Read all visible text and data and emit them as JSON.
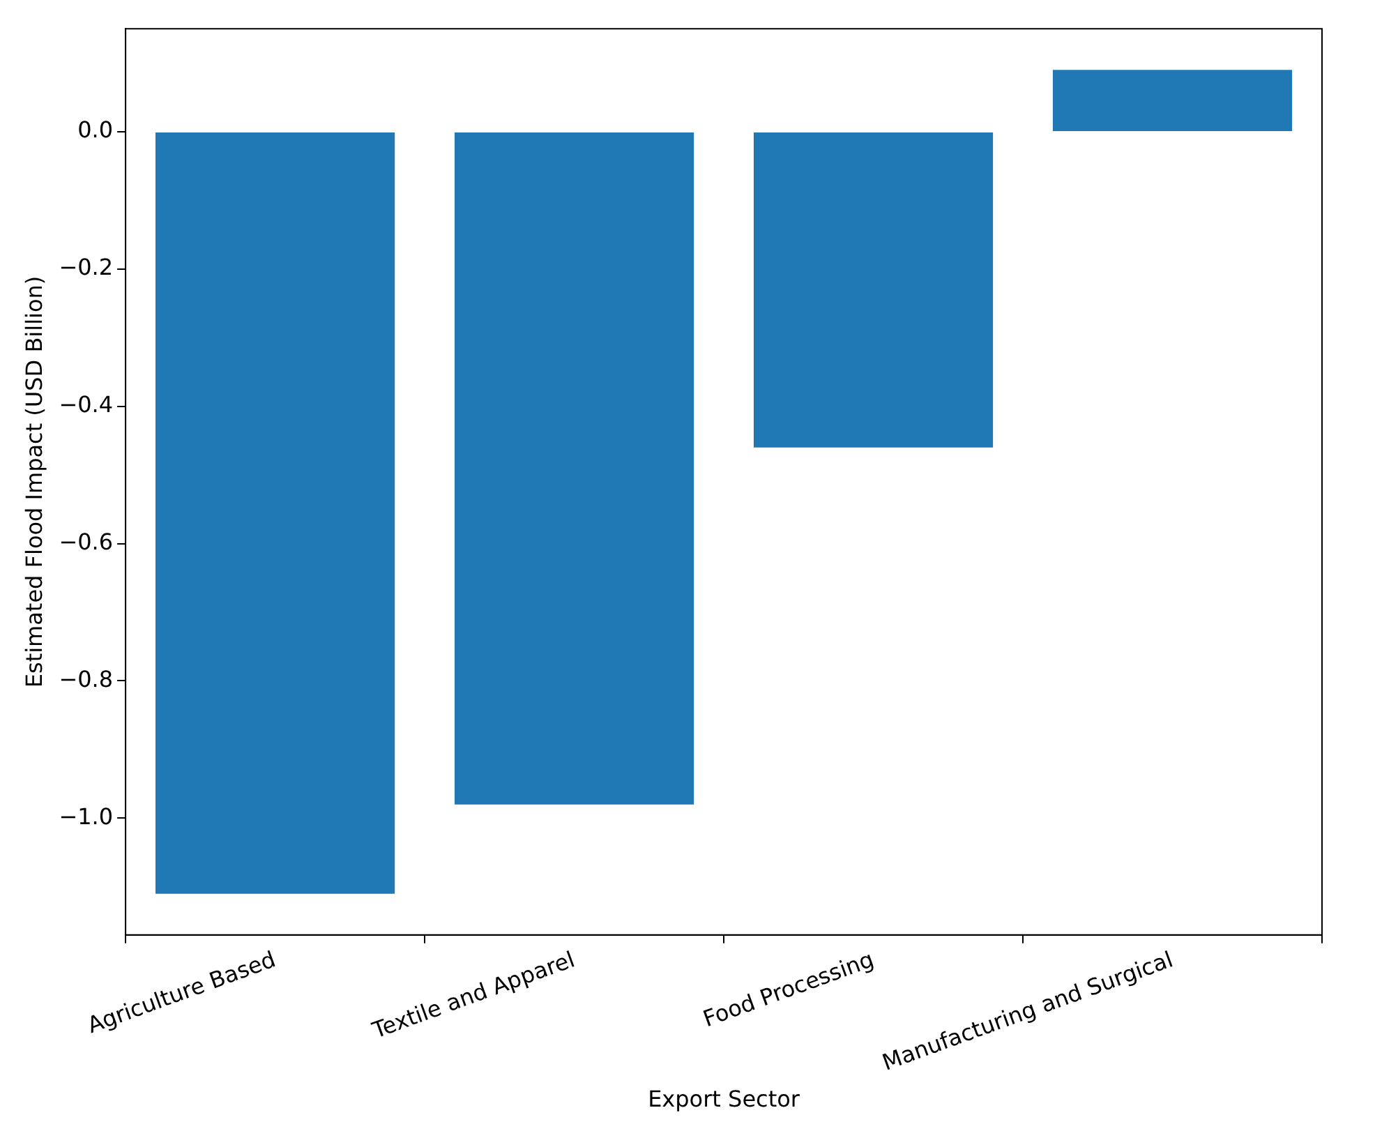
{
  "chart_data": {
    "type": "bar",
    "xlabel": "Export Sector",
    "ylabel": "Estimated Flood Impact (USD Billion)",
    "categories": [
      "Agriculture Based",
      "Textile and Apparel",
      "Food Processing",
      "Manufacturing and Surgical"
    ],
    "values": [
      -1.11,
      -0.98,
      -0.46,
      0.09
    ],
    "color": "#1f77b4",
    "ylim": [
      -1.17,
      0.15
    ],
    "yticks": [
      {
        "value": -1.0,
        "label": "−1.0"
      },
      {
        "value": -0.8,
        "label": "−0.8"
      },
      {
        "value": -0.6,
        "label": "−0.6"
      },
      {
        "value": -0.4,
        "label": "−0.4"
      },
      {
        "value": -0.2,
        "label": "−0.2"
      },
      {
        "value": 0,
        "label": "0.0"
      }
    ],
    "grid": false,
    "legend": false
  }
}
